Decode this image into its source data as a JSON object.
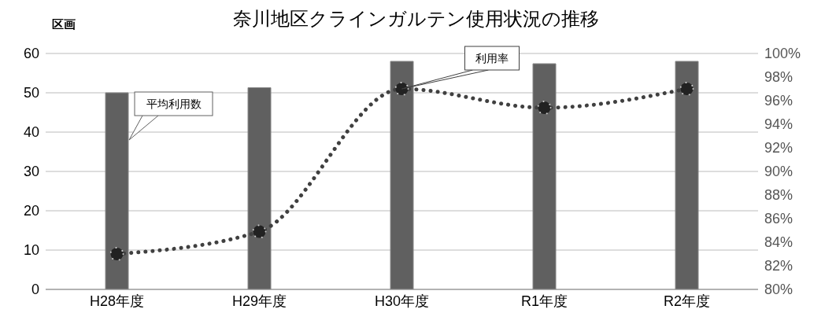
{
  "chart_data": {
    "type": "bar",
    "title": "奈川地区クラインガルテン使用状況の推移",
    "ylabel": "区画",
    "categories": [
      "H28年度",
      "H29年度",
      "H30年度",
      "R1年度",
      "R2年度"
    ],
    "series": [
      {
        "name": "平均利用数",
        "color": "#606060",
        "values": [
          50,
          51.3,
          58,
          57.4,
          58
        ]
      },
      {
        "name": "利用率",
        "type": "line",
        "axis": "y2",
        "color": "#404040",
        "values": [
          83,
          84.9,
          97,
          95.4,
          97
        ],
        "marker": "circle",
        "line_style": "dotted"
      }
    ],
    "ylim": [
      0,
      60
    ],
    "yticks": [
      0,
      10,
      20,
      30,
      40,
      50,
      60
    ],
    "y2lim": [
      80,
      100
    ],
    "y2ticks": [
      {
        "value": 80,
        "label": "80%"
      },
      {
        "value": 82,
        "label": "82%"
      },
      {
        "value": 84,
        "label": "84%"
      },
      {
        "value": 86,
        "label": "86%"
      },
      {
        "value": 88,
        "label": "88%"
      },
      {
        "value": 90,
        "label": "90%"
      },
      {
        "value": 92,
        "label": "92%"
      },
      {
        "value": 94,
        "label": "94%"
      },
      {
        "value": 96,
        "label": "96%"
      },
      {
        "value": 98,
        "label": "98%"
      },
      {
        "value": 100,
        "label": "100%"
      }
    ],
    "grid": "y",
    "legend": false
  }
}
